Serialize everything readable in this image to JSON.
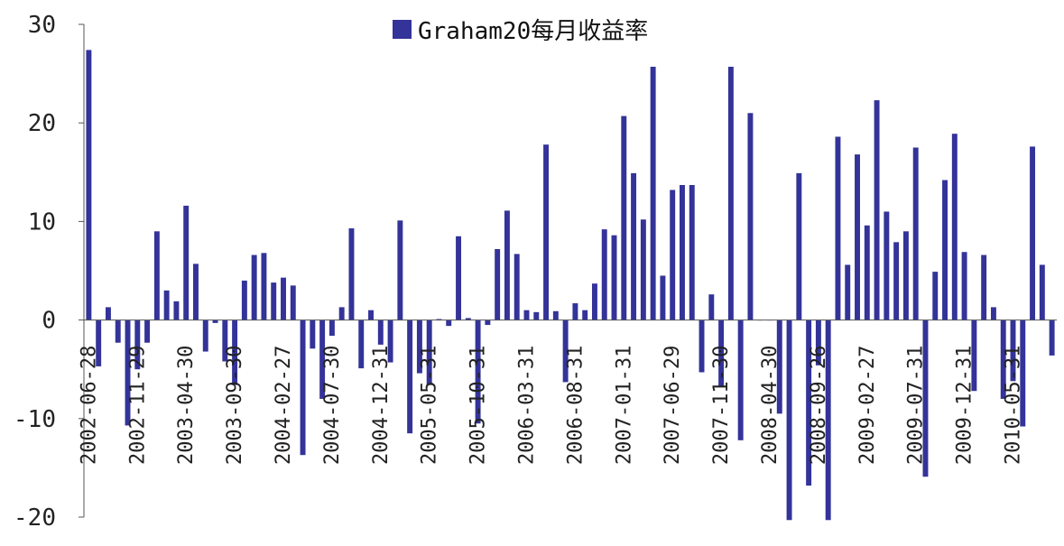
{
  "chart_data": {
    "type": "bar",
    "title": "",
    "xlabel": "",
    "ylabel": "",
    "ylim": [
      -20,
      30
    ],
    "yticks": [
      -20,
      -10,
      0,
      10,
      20,
      30
    ],
    "ytick_labels": [
      "-20",
      "-10",
      "0",
      "10",
      "20",
      "30"
    ],
    "grid": false,
    "legend_position": "top-center",
    "bar_color": "#333399",
    "x_tick_labels": [
      {
        "label": "2002-06-28",
        "index": 0
      },
      {
        "label": "2002-11-29",
        "index": 5
      },
      {
        "label": "2003-04-30",
        "index": 10
      },
      {
        "label": "2003-09-30",
        "index": 15
      },
      {
        "label": "2004-02-27",
        "index": 20
      },
      {
        "label": "2004-07-30",
        "index": 25
      },
      {
        "label": "2004-12-31",
        "index": 30
      },
      {
        "label": "2005-05-31",
        "index": 35
      },
      {
        "label": "2005-10-31",
        "index": 40
      },
      {
        "label": "2006-03-31",
        "index": 45
      },
      {
        "label": "2006-08-31",
        "index": 50
      },
      {
        "label": "2007-01-31",
        "index": 55
      },
      {
        "label": "2007-06-29",
        "index": 60
      },
      {
        "label": "2007-11-30",
        "index": 65
      },
      {
        "label": "2008-04-30",
        "index": 70
      },
      {
        "label": "2008-09-26",
        "index": 75
      },
      {
        "label": "2009-02-27",
        "index": 80
      },
      {
        "label": "2009-07-31",
        "index": 85
      },
      {
        "label": "2009-12-31",
        "index": 90
      },
      {
        "label": "2010-05-31",
        "index": 95
      }
    ],
    "series": [
      {
        "name": "Graham20每月收益率",
        "values": [
          27.4,
          -4.7,
          1.3,
          -2.3,
          -10.7,
          -5.0,
          -2.3,
          9.0,
          3.0,
          1.9,
          11.6,
          5.7,
          -3.2,
          -0.3,
          -4.2,
          -6.6,
          4.0,
          6.6,
          6.8,
          3.8,
          4.3,
          3.5,
          -13.7,
          -2.9,
          -8.0,
          -1.6,
          1.3,
          9.3,
          -4.9,
          1.0,
          -2.5,
          -4.3,
          10.1,
          -11.5,
          -5.4,
          -6.6,
          0.1,
          -0.6,
          8.5,
          0.2,
          -10.5,
          -0.5,
          7.2,
          11.1,
          6.7,
          1.0,
          0.8,
          17.8,
          0.9,
          -6.3,
          1.7,
          1.0,
          3.7,
          9.2,
          8.6,
          20.7,
          14.9,
          10.2,
          25.7,
          4.5,
          13.2,
          13.7,
          13.7,
          -5.3,
          2.6,
          -6.8,
          25.7,
          -12.2,
          21.0,
          0.0,
          0.0,
          -9.5,
          -20.3,
          14.9,
          -16.8,
          -4.6,
          -20.3,
          18.6,
          5.6,
          16.8,
          9.6,
          22.3,
          11.0,
          7.9,
          9.0,
          17.5,
          -15.9,
          4.9,
          14.2,
          18.9,
          6.9,
          -7.2,
          6.6,
          1.3,
          -8.0,
          -6.2,
          -10.8,
          17.6,
          5.6,
          -3.6
        ]
      }
    ]
  }
}
